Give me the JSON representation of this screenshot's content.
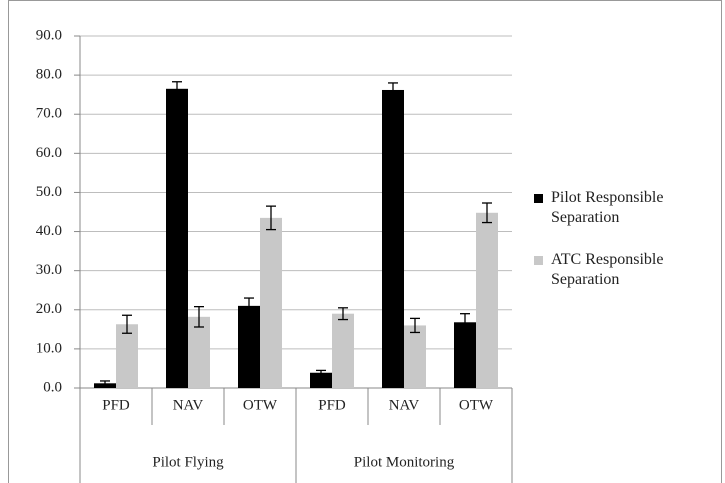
{
  "chart_data": {
    "type": "bar",
    "groups": [
      {
        "name": "Pilot Flying",
        "categories": [
          "PFD",
          "NAV",
          "OTW"
        ]
      },
      {
        "name": "Pilot Monitoring",
        "categories": [
          "PFD",
          "NAV",
          "OTW"
        ]
      }
    ],
    "series": [
      {
        "name": "Pilot Responsible Separation",
        "color": "#000000",
        "values": [
          1.2,
          76.5,
          21.0,
          3.9,
          76.2,
          16.8
        ],
        "errors": [
          0.6,
          1.8,
          2.0,
          0.6,
          1.8,
          2.2
        ]
      },
      {
        "name": "ATC Responsible Separation",
        "color": "#c8c8c8",
        "values": [
          16.3,
          18.2,
          43.5,
          19.0,
          16.0,
          44.8
        ],
        "errors": [
          2.3,
          2.6,
          3.0,
          1.5,
          1.8,
          2.5
        ]
      }
    ],
    "ylim": [
      0,
      90
    ],
    "yticks": [
      {
        "value": 0,
        "label": "0.0"
      },
      {
        "value": 10,
        "label": "10.0"
      },
      {
        "value": 20,
        "label": "20.0"
      },
      {
        "value": 30,
        "label": "30.0"
      },
      {
        "value": 40,
        "label": "40.0"
      },
      {
        "value": 50,
        "label": "50.0"
      },
      {
        "value": 60,
        "label": "60.0"
      },
      {
        "value": 70,
        "label": "70.0"
      },
      {
        "value": 80,
        "label": "80.0"
      },
      {
        "value": 90,
        "label": "90.0"
      }
    ],
    "grid": true,
    "legend": "right"
  }
}
